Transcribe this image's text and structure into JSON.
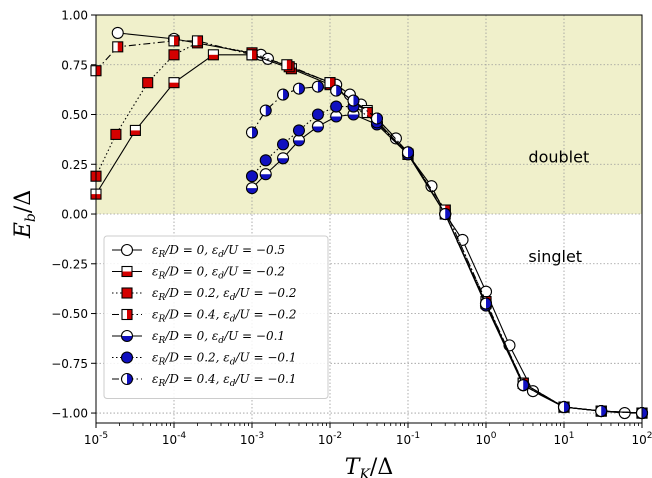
{
  "chart_data": {
    "type": "line",
    "xscale": "log",
    "xlim": [
      1e-05,
      100
    ],
    "ylim": [
      -1.05,
      1.0
    ],
    "xlabel": "T_K/Δ",
    "ylabel": "E_b/Δ",
    "grid": true,
    "legend_position": "lower-left",
    "x_ticks": [
      {
        "v": 1e-05,
        "base": "10",
        "exp": "-5"
      },
      {
        "v": 0.0001,
        "base": "10",
        "exp": "-4"
      },
      {
        "v": 0.001,
        "base": "10",
        "exp": "-3"
      },
      {
        "v": 0.01,
        "base": "10",
        "exp": "-2"
      },
      {
        "v": 0.1,
        "base": "10",
        "exp": "-1"
      },
      {
        "v": 1,
        "base": "10",
        "exp": "0"
      },
      {
        "v": 10,
        "base": "10",
        "exp": "1"
      },
      {
        "v": 100,
        "base": "10",
        "exp": "2"
      }
    ],
    "y_ticks": [
      {
        "v": 1.0,
        "label": "1.00"
      },
      {
        "v": 0.75,
        "label": "0.75"
      },
      {
        "v": 0.5,
        "label": "0.50"
      },
      {
        "v": 0.25,
        "label": "0.25"
      },
      {
        "v": 0.0,
        "label": "0.00"
      },
      {
        "v": -0.25,
        "label": "−0.25"
      },
      {
        "v": -0.5,
        "label": "−0.50"
      },
      {
        "v": -0.75,
        "label": "−0.75"
      },
      {
        "v": -1.0,
        "label": "−1.00"
      }
    ],
    "regions": [
      {
        "label": "doublet",
        "y_from": 0.0,
        "y_to": 1.0,
        "color": "#f0f0cb",
        "label_x": 3.5,
        "label_y": 0.26
      },
      {
        "label": "singlet",
        "y_from": -1.05,
        "y_to": 0.0,
        "color": "#ffffff",
        "label_x": 3.5,
        "label_y": -0.24
      }
    ],
    "colors": {
      "red": "#d40000",
      "blue": "#1010c0"
    },
    "series": [
      {
        "name": "ε_R/D = 0, ε_d/U = −0.5",
        "marker": "circle",
        "fill": "none",
        "color": "#ffffff",
        "line": "solid",
        "x": [
          1.9e-05,
          0.0001,
          0.0013,
          0.0016,
          0.012,
          0.018,
          0.025,
          0.04,
          0.07,
          0.1,
          0.2,
          0.3,
          0.5,
          1.0,
          2.0,
          4.0,
          10,
          30,
          60,
          100
        ],
        "y": [
          0.91,
          0.88,
          0.8,
          0.78,
          0.65,
          0.6,
          0.55,
          0.48,
          0.38,
          0.3,
          0.14,
          0.0,
          -0.13,
          -0.39,
          -0.66,
          -0.89,
          -0.97,
          -0.99,
          -1.0,
          -1.0
        ]
      },
      {
        "name": "ε_R/D = 0, ε_d/U = −0.2",
        "marker": "square",
        "fill": "bottom",
        "color": "#d40000",
        "line": "solid",
        "x": [
          1e-05,
          3.2e-05,
          0.0001,
          0.00032,
          0.001,
          0.0032,
          0.01,
          0.03,
          0.1,
          0.3,
          1.0,
          3.0,
          10,
          30,
          100
        ],
        "y": [
          0.1,
          0.42,
          0.66,
          0.8,
          0.8,
          0.73,
          0.65,
          0.52,
          0.3,
          0.0,
          -0.45,
          -0.85,
          -0.97,
          -0.99,
          -1.0
        ]
      },
      {
        "name": "ε_R/D = 0.2, ε_d/U = −0.2",
        "marker": "square",
        "fill": "full",
        "color": "#d40000",
        "line": "dotted",
        "x": [
          1e-05,
          1.8e-05,
          4.6e-05,
          0.0001,
          0.0002,
          0.001,
          0.003,
          0.01,
          0.03,
          0.1,
          0.3,
          1.0,
          3.0,
          10,
          30,
          100
        ],
        "y": [
          0.19,
          0.4,
          0.66,
          0.8,
          0.86,
          0.81,
          0.74,
          0.66,
          0.51,
          0.3,
          0.02,
          -0.44,
          -0.85,
          -0.97,
          -0.99,
          -1.0
        ]
      },
      {
        "name": "ε_R/D = 0.4, ε_d/U = −0.2",
        "marker": "square",
        "fill": "right",
        "color": "#d40000",
        "line": "dashdot",
        "x": [
          1e-05,
          1.9e-05,
          0.0001,
          0.0002,
          0.001,
          0.0028,
          0.01,
          0.03,
          0.1,
          0.3,
          1.0,
          3.0,
          10,
          30,
          100
        ],
        "y": [
          0.72,
          0.84,
          0.87,
          0.87,
          0.8,
          0.75,
          0.66,
          0.51,
          0.3,
          0.02,
          -0.44,
          -0.85,
          -0.97,
          -0.99,
          -1.0
        ]
      },
      {
        "name": "ε_R/D = 0, ε_d/U = −0.1",
        "marker": "circle",
        "fill": "bottom",
        "color": "#1010c0",
        "line": "solid",
        "x": [
          0.001,
          0.0015,
          0.0025,
          0.004,
          0.007,
          0.012,
          0.02,
          0.04,
          0.1,
          0.3,
          1.0,
          3.0,
          10,
          30,
          100
        ],
        "y": [
          0.13,
          0.2,
          0.28,
          0.37,
          0.44,
          0.49,
          0.5,
          0.45,
          0.3,
          0.0,
          -0.46,
          -0.86,
          -0.97,
          -0.99,
          -1.0
        ]
      },
      {
        "name": "ε_R/D = 0.2, ε_d/U = −0.1",
        "marker": "circle",
        "fill": "full",
        "color": "#1010c0",
        "line": "dotted",
        "x": [
          0.001,
          0.0015,
          0.0025,
          0.004,
          0.007,
          0.012,
          0.02,
          0.04,
          0.1,
          0.3,
          1.0,
          3.0,
          10,
          30,
          100
        ],
        "y": [
          0.19,
          0.27,
          0.35,
          0.42,
          0.5,
          0.54,
          0.54,
          0.46,
          0.31,
          0.0,
          -0.45,
          -0.86,
          -0.97,
          -0.99,
          -1.0
        ]
      },
      {
        "name": "ε_R/D = 0.4, ε_d/U = −0.1",
        "marker": "circle",
        "fill": "right",
        "color": "#1010c0",
        "line": "dashdot",
        "x": [
          0.001,
          0.0015,
          0.0025,
          0.004,
          0.007,
          0.012,
          0.02,
          0.04,
          0.1,
          0.3,
          1.0,
          3.0,
          10,
          30,
          100
        ],
        "y": [
          0.41,
          0.52,
          0.6,
          0.63,
          0.64,
          0.62,
          0.57,
          0.48,
          0.31,
          0.0,
          -0.45,
          -0.86,
          -0.97,
          -0.99,
          -1.0
        ]
      }
    ],
    "legend": [
      {
        "s": 0,
        "prefix": "ε",
        "sub1": "R",
        "mid": "/D = 0, ε",
        "sub2": "d",
        "suffix": "/U = −0.5"
      },
      {
        "s": 1,
        "prefix": "ε",
        "sub1": "R",
        "mid": "/D = 0, ε",
        "sub2": "d",
        "suffix": "/U = −0.2"
      },
      {
        "s": 2,
        "prefix": "ε",
        "sub1": "R",
        "mid": "/D = 0.2, ε",
        "sub2": "d",
        "suffix": "/U = −0.2"
      },
      {
        "s": 3,
        "prefix": "ε",
        "sub1": "R",
        "mid": "/D = 0.4, ε",
        "sub2": "d",
        "suffix": "/U = −0.2"
      },
      {
        "s": 4,
        "prefix": "ε",
        "sub1": "R",
        "mid": "/D = 0, ε",
        "sub2": "d",
        "suffix": "/U = −0.1"
      },
      {
        "s": 5,
        "prefix": "ε",
        "sub1": "R",
        "mid": "/D = 0.2, ε",
        "sub2": "d",
        "suffix": "/U = −0.1"
      },
      {
        "s": 6,
        "prefix": "ε",
        "sub1": "R",
        "mid": "/D = 0.4, ε",
        "sub2": "d",
        "suffix": "/U = −0.1"
      }
    ]
  }
}
